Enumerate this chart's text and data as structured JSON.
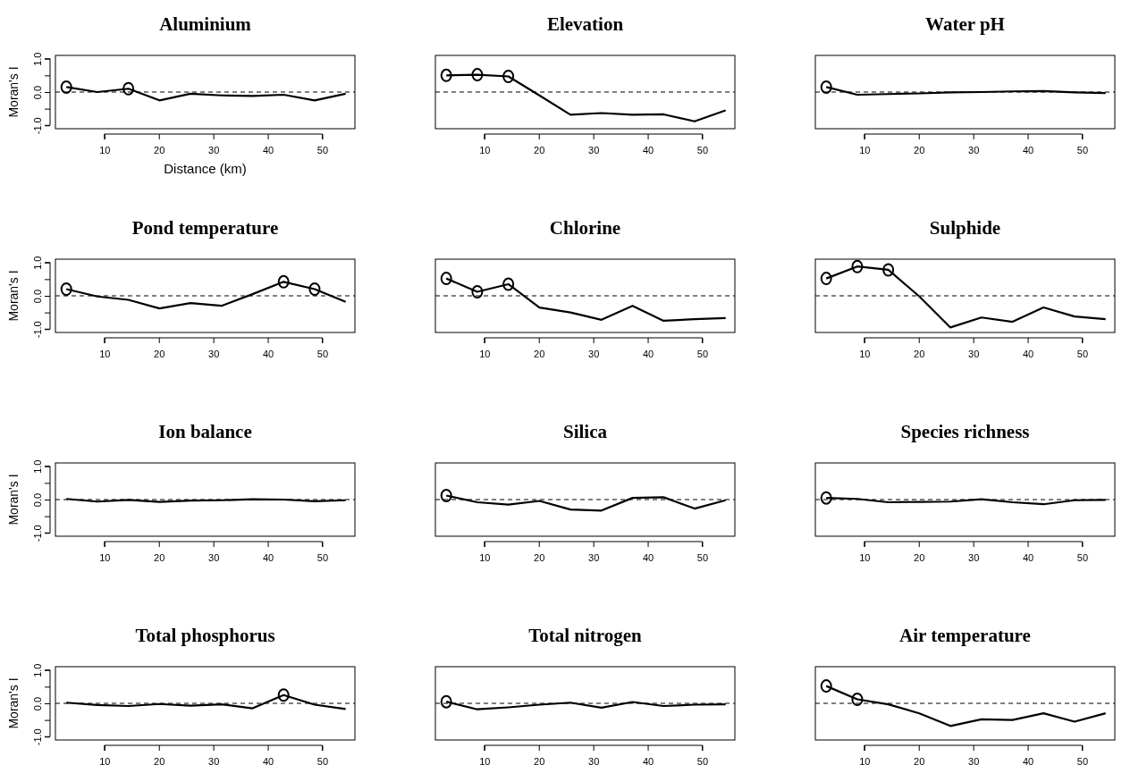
{
  "chart_data": [
    {
      "type": "line",
      "title": "Aluminium",
      "xlabel": "Distance (km)",
      "ylabel": "Moran's I",
      "x": [
        3,
        8.7,
        14.4,
        20.1,
        25.8,
        31.5,
        37.2,
        42.9,
        48.6,
        54.3
      ],
      "xlim": [
        1,
        56
      ],
      "xticks": [
        10,
        20,
        30,
        40,
        50
      ],
      "ylim": [
        -1.1,
        1.1
      ],
      "yticks": [
        {
          "value": -1,
          "label": "-1.0"
        },
        {
          "value": -0.5,
          "label": null
        },
        {
          "value": 0,
          "label": "0.0"
        },
        {
          "value": 0.5,
          "label": null
        },
        {
          "value": 1,
          "label": "1.0"
        }
      ],
      "ref_lines": [
        {
          "axis": "y",
          "value": 0,
          "line_style": "dashed"
        }
      ],
      "series": [
        {
          "type": "line",
          "color": "#000000",
          "values": [
            0.15,
            0.0,
            0.1,
            -0.25,
            -0.05,
            -0.1,
            -0.12,
            -0.08,
            -0.25,
            -0.05
          ]
        },
        {
          "type": "scatter",
          "marker": "circle",
          "color": "#000000",
          "x": [
            3,
            14.4
          ],
          "values": [
            0.15,
            0.1
          ]
        }
      ]
    },
    {
      "type": "line",
      "title": "Elevation",
      "tick_labels": "x",
      "x": [
        3,
        8.7,
        14.4,
        20.1,
        25.8,
        31.5,
        37.2,
        42.9,
        48.6,
        54.3
      ],
      "xlim": [
        1,
        56
      ],
      "xticks": [
        10,
        20,
        30,
        40,
        50
      ],
      "ylim": [
        -1.1,
        1.1
      ],
      "ref_lines": [
        {
          "axis": "y",
          "value": 0,
          "line_style": "dashed"
        }
      ],
      "series": [
        {
          "type": "line",
          "color": "#000000",
          "values": [
            0.5,
            0.52,
            0.47,
            -0.1,
            -0.68,
            -0.63,
            -0.68,
            -0.67,
            -0.88,
            -0.55
          ]
        },
        {
          "type": "scatter",
          "marker": "circle",
          "color": "#000000",
          "x": [
            3,
            8.7,
            14.4
          ],
          "values": [
            0.5,
            0.52,
            0.47
          ]
        }
      ]
    },
    {
      "type": "line",
      "title": "Water pH",
      "tick_labels": "x",
      "x": [
        3,
        8.7,
        14.4,
        20.1,
        25.8,
        31.5,
        37.2,
        42.9,
        48.6,
        54.3
      ],
      "xlim": [
        1,
        56
      ],
      "xticks": [
        10,
        20,
        30,
        40,
        50
      ],
      "ylim": [
        -1.1,
        1.1
      ],
      "ref_lines": [
        {
          "axis": "y",
          "value": 0,
          "line_style": "dashed"
        }
      ],
      "series": [
        {
          "type": "line",
          "color": "#000000",
          "values": [
            0.15,
            -0.08,
            -0.06,
            -0.04,
            -0.01,
            0.0,
            0.02,
            0.03,
            -0.01,
            -0.03
          ]
        },
        {
          "type": "scatter",
          "marker": "circle",
          "color": "#000000",
          "x": [
            3
          ],
          "values": [
            0.15
          ]
        }
      ]
    },
    {
      "type": "line",
      "title": "Pond temperature",
      "ylabel": "Moran's I",
      "x": [
        3,
        8.7,
        14.4,
        20.1,
        25.8,
        31.5,
        37.2,
        42.9,
        48.6,
        54.3
      ],
      "xlim": [
        1,
        56
      ],
      "xticks": [
        10,
        20,
        30,
        40,
        50
      ],
      "ylim": [
        -1.1,
        1.1
      ],
      "yticks": [
        {
          "value": -1,
          "label": "-1.0"
        },
        {
          "value": -0.5,
          "label": null
        },
        {
          "value": 0,
          "label": "0.0"
        },
        {
          "value": 0.5,
          "label": null
        },
        {
          "value": 1,
          "label": "1.0"
        }
      ],
      "ref_lines": [
        {
          "axis": "y",
          "value": 0,
          "line_style": "dashed"
        }
      ],
      "series": [
        {
          "type": "line",
          "color": "#000000",
          "values": [
            0.2,
            -0.02,
            -0.12,
            -0.38,
            -0.22,
            -0.3,
            0.05,
            0.42,
            0.2,
            -0.18
          ]
        },
        {
          "type": "scatter",
          "marker": "circle",
          "color": "#000000",
          "x": [
            3,
            42.9,
            48.6
          ],
          "values": [
            0.2,
            0.42,
            0.2
          ]
        }
      ]
    },
    {
      "type": "line",
      "title": "Chlorine",
      "tick_labels": "x",
      "x": [
        3,
        8.7,
        14.4,
        20.1,
        25.8,
        31.5,
        37.2,
        42.9,
        48.6,
        54.3
      ],
      "xlim": [
        1,
        56
      ],
      "xticks": [
        10,
        20,
        30,
        40,
        50
      ],
      "ylim": [
        -1.1,
        1.1
      ],
      "ref_lines": [
        {
          "axis": "y",
          "value": 0,
          "line_style": "dashed"
        }
      ],
      "series": [
        {
          "type": "line",
          "color": "#000000",
          "values": [
            0.52,
            0.12,
            0.35,
            -0.35,
            -0.5,
            -0.72,
            -0.3,
            -0.75,
            -0.7,
            -0.67
          ]
        },
        {
          "type": "scatter",
          "marker": "circle",
          "color": "#000000",
          "x": [
            3,
            8.7,
            14.4
          ],
          "values": [
            0.52,
            0.12,
            0.35
          ]
        }
      ]
    },
    {
      "type": "line",
      "title": "Sulphide",
      "tick_labels": "x",
      "x": [
        3,
        8.7,
        14.4,
        20.1,
        25.8,
        31.5,
        37.2,
        42.9,
        48.6,
        54.3
      ],
      "xlim": [
        1,
        56
      ],
      "xticks": [
        10,
        20,
        30,
        40,
        50
      ],
      "ylim": [
        -1.1,
        1.1
      ],
      "ref_lines": [
        {
          "axis": "y",
          "value": 0,
          "line_style": "dashed"
        }
      ],
      "series": [
        {
          "type": "line",
          "color": "#000000",
          "values": [
            0.52,
            0.88,
            0.78,
            -0.02,
            -0.95,
            -0.65,
            -0.78,
            -0.35,
            -0.62,
            -0.7
          ]
        },
        {
          "type": "scatter",
          "marker": "circle",
          "color": "#000000",
          "x": [
            3,
            8.7,
            14.4
          ],
          "values": [
            0.52,
            0.88,
            0.78
          ]
        }
      ]
    },
    {
      "type": "line",
      "title": "Ion balance",
      "ylabel": "Moran's I",
      "x": [
        3,
        8.7,
        14.4,
        20.1,
        25.8,
        31.5,
        37.2,
        42.9,
        48.6,
        54.3
      ],
      "xlim": [
        1,
        56
      ],
      "xticks": [
        10,
        20,
        30,
        40,
        50
      ],
      "ylim": [
        -1.1,
        1.1
      ],
      "yticks": [
        {
          "value": -1,
          "label": "-1.0"
        },
        {
          "value": -0.5,
          "label": null
        },
        {
          "value": 0,
          "label": "0.0"
        },
        {
          "value": 0.5,
          "label": null
        },
        {
          "value": 1,
          "label": "1.0"
        }
      ],
      "ref_lines": [
        {
          "axis": "y",
          "value": 0,
          "line_style": "dashed"
        }
      ],
      "series": [
        {
          "type": "line",
          "color": "#000000",
          "values": [
            0.02,
            -0.06,
            -0.01,
            -0.07,
            -0.03,
            -0.02,
            0.01,
            0.0,
            -0.05,
            -0.02
          ]
        }
      ]
    },
    {
      "type": "line",
      "title": "Silica",
      "tick_labels": "x",
      "x": [
        3,
        8.7,
        14.4,
        20.1,
        25.8,
        31.5,
        37.2,
        42.9,
        48.6,
        54.3
      ],
      "xlim": [
        1,
        56
      ],
      "xticks": [
        10,
        20,
        30,
        40,
        50
      ],
      "ylim": [
        -1.1,
        1.1
      ],
      "ref_lines": [
        {
          "axis": "y",
          "value": 0,
          "line_style": "dashed"
        }
      ],
      "series": [
        {
          "type": "line",
          "color": "#000000",
          "values": [
            0.12,
            -0.08,
            -0.15,
            -0.04,
            -0.3,
            -0.33,
            0.05,
            0.07,
            -0.27,
            -0.02
          ]
        },
        {
          "type": "scatter",
          "marker": "circle",
          "color": "#000000",
          "x": [
            3
          ],
          "values": [
            0.12
          ]
        }
      ]
    },
    {
      "type": "line",
      "title": "Species richness",
      "tick_labels": "x",
      "x": [
        3,
        8.7,
        14.4,
        20.1,
        25.8,
        31.5,
        37.2,
        42.9,
        48.6,
        54.3
      ],
      "xlim": [
        1,
        56
      ],
      "xticks": [
        10,
        20,
        30,
        40,
        50
      ],
      "ylim": [
        -1.1,
        1.1
      ],
      "ref_lines": [
        {
          "axis": "y",
          "value": 0,
          "line_style": "dashed"
        }
      ],
      "series": [
        {
          "type": "line",
          "color": "#000000",
          "values": [
            0.05,
            0.02,
            -0.08,
            -0.07,
            -0.06,
            0.01,
            -0.08,
            -0.14,
            -0.02,
            -0.01
          ]
        },
        {
          "type": "scatter",
          "marker": "circle",
          "color": "#000000",
          "x": [
            3
          ],
          "values": [
            0.05
          ]
        }
      ]
    },
    {
      "type": "line",
      "title": "Total phosphorus",
      "ylabel": "Moran's I",
      "x": [
        3,
        8.7,
        14.4,
        20.1,
        25.8,
        31.5,
        37.2,
        42.9,
        48.6,
        54.3
      ],
      "xlim": [
        1,
        56
      ],
      "xticks": [
        10,
        20,
        30,
        40,
        50
      ],
      "ylim": [
        -1.1,
        1.1
      ],
      "yticks": [
        {
          "value": -1,
          "label": "-1.0"
        },
        {
          "value": -0.5,
          "label": null
        },
        {
          "value": 0,
          "label": "0.0"
        },
        {
          "value": 0.5,
          "label": null
        },
        {
          "value": 1,
          "label": "1.0"
        }
      ],
      "ref_lines": [
        {
          "axis": "y",
          "value": 0,
          "line_style": "dashed"
        }
      ],
      "series": [
        {
          "type": "line",
          "color": "#000000",
          "values": [
            0.02,
            -0.05,
            -0.08,
            -0.02,
            -0.07,
            -0.03,
            -0.15,
            0.25,
            -0.04,
            -0.17
          ]
        },
        {
          "type": "scatter",
          "marker": "circle",
          "color": "#000000",
          "x": [
            42.9
          ],
          "values": [
            0.25
          ]
        }
      ]
    },
    {
      "type": "line",
      "title": "Total nitrogen",
      "tick_labels": "x",
      "x": [
        3,
        8.7,
        14.4,
        20.1,
        25.8,
        31.5,
        37.2,
        42.9,
        48.6,
        54.3
      ],
      "xlim": [
        1,
        56
      ],
      "xticks": [
        10,
        20,
        30,
        40,
        50
      ],
      "ylim": [
        -1.1,
        1.1
      ],
      "ref_lines": [
        {
          "axis": "y",
          "value": 0,
          "line_style": "dashed"
        }
      ],
      "series": [
        {
          "type": "line",
          "color": "#000000",
          "values": [
            0.05,
            -0.18,
            -0.12,
            -0.04,
            0.02,
            -0.13,
            0.04,
            -0.08,
            -0.04,
            -0.03
          ]
        },
        {
          "type": "scatter",
          "marker": "circle",
          "color": "#000000",
          "x": [
            3
          ],
          "values": [
            0.05
          ]
        }
      ]
    },
    {
      "type": "line",
      "title": "Air temperature",
      "tick_labels": "x",
      "x": [
        3,
        8.7,
        14.4,
        20.1,
        25.8,
        31.5,
        37.2,
        42.9,
        48.6,
        54.3
      ],
      "xlim": [
        1,
        56
      ],
      "xticks": [
        10,
        20,
        30,
        40,
        50
      ],
      "ylim": [
        -1.1,
        1.1
      ],
      "ref_lines": [
        {
          "axis": "y",
          "value": 0,
          "line_style": "dashed"
        }
      ],
      "series": [
        {
          "type": "line",
          "color": "#000000",
          "values": [
            0.52,
            0.12,
            -0.03,
            -0.3,
            -0.68,
            -0.48,
            -0.5,
            -0.3,
            -0.55,
            -0.3
          ]
        },
        {
          "type": "scatter",
          "marker": "circle",
          "color": "#000000",
          "x": [
            3,
            8.7
          ],
          "values": [
            0.52,
            0.12
          ]
        }
      ]
    }
  ]
}
